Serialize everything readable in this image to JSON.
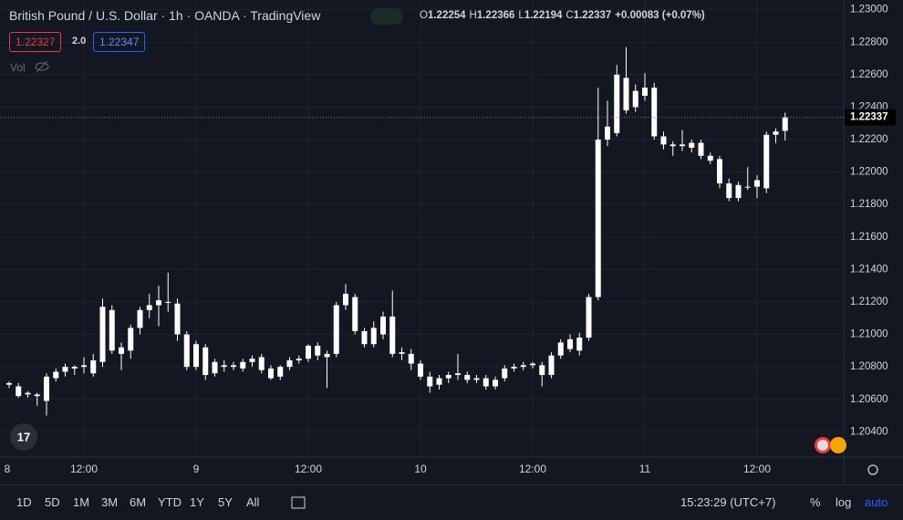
{
  "header": {
    "title": "British Pound / U.S. Dollar · 1h · OANDA · TradingView",
    "ohlc": [
      {
        "key": "O",
        "value": "1.22254"
      },
      {
        "key": "H",
        "value": "1.22366"
      },
      {
        "key": "L",
        "value": "1.22194"
      },
      {
        "key": "C",
        "value": "1.22337"
      }
    ],
    "change": "+0.00083 (+0.07%)",
    "bid": "1.22327",
    "spread": "2.0",
    "ask": "1.22347",
    "volume_label": "Vol"
  },
  "chart_data": {
    "type": "candlestick",
    "up_color": "#ffffff",
    "down_color": "#ffffff",
    "grid": true,
    "ylim": [
      1.2025,
      1.2306
    ],
    "yticks": [
      {
        "value": 1.204,
        "label": "1.20400"
      },
      {
        "value": 1.206,
        "label": "1.20600"
      },
      {
        "value": 1.208,
        "label": "1.20800"
      },
      {
        "value": 1.21,
        "label": "1.21000"
      },
      {
        "value": 1.212,
        "label": "1.21200"
      },
      {
        "value": 1.214,
        "label": "1.21400"
      },
      {
        "value": 1.216,
        "label": "1.21600"
      },
      {
        "value": 1.218,
        "label": "1.21800"
      },
      {
        "value": 1.22,
        "label": "1.22000"
      },
      {
        "value": 1.222,
        "label": "1.22200"
      },
      {
        "value": 1.224,
        "label": "1.22400"
      },
      {
        "value": 1.226,
        "label": "1.22600"
      },
      {
        "value": 1.228,
        "label": "1.22800"
      },
      {
        "value": 1.23,
        "label": "1.23000"
      }
    ],
    "xticks": [
      {
        "value": -4,
        "label": "8"
      },
      {
        "value": 8,
        "label": "12:00"
      },
      {
        "value": 20,
        "label": "9"
      },
      {
        "value": 32,
        "label": "12:00"
      },
      {
        "value": 44,
        "label": "10"
      },
      {
        "value": 56,
        "label": "12:00"
      },
      {
        "value": 68,
        "label": "11"
      },
      {
        "value": 80,
        "label": "12:00"
      }
    ],
    "open": [
      1.2069,
      1.2068,
      1.2063,
      1.2063,
      1.2059,
      1.2073,
      1.2077,
      1.2079,
      1.208,
      1.2076,
      1.2083,
      1.2115,
      1.2088,
      1.209,
      1.2104,
      1.2115,
      1.2118,
      1.212,
      1.2119,
      1.21,
      1.208,
      1.2092,
      1.2076,
      1.2081,
      1.208,
      1.2079,
      1.2083,
      1.2086,
      1.2079,
      1.2074,
      1.208,
      1.2084,
      1.2085,
      1.2093,
      1.2088,
      1.2088,
      1.2118,
      1.2123,
      1.2102,
      1.2094,
      1.21,
      1.2111,
      1.2088,
      1.2088,
      1.2082,
      1.2074,
      1.2069,
      1.2073,
      1.2075,
      1.2075,
      1.2072,
      1.2073,
      1.2068,
      1.2073,
      1.2079,
      1.208,
      1.2081,
      1.2081,
      1.2075,
      1.2087,
      1.2091,
      1.209,
      1.2098,
      1.2123,
      1.222,
      1.2224,
      1.2258,
      1.224,
      1.2247,
      1.2252,
      1.2222,
      1.2217,
      1.2216,
      1.2215,
      1.2218,
      1.221,
      1.2208,
      1.2193,
      1.2184,
      1.2191,
      1.2191,
      1.219,
      1.2223,
      1.22254
    ],
    "high": [
      1.2071,
      1.207,
      1.2065,
      1.2064,
      1.2076,
      1.2079,
      1.2082,
      1.2081,
      1.2086,
      1.2088,
      1.2122,
      1.2118,
      1.2095,
      1.2106,
      1.2117,
      1.2125,
      1.213,
      1.2138,
      1.2122,
      1.2102,
      1.2096,
      1.2094,
      1.2085,
      1.2084,
      1.2083,
      1.2085,
      1.2087,
      1.2088,
      1.2081,
      1.2081,
      1.2086,
      1.2087,
      1.2094,
      1.2095,
      1.209,
      1.212,
      1.2131,
      1.2125,
      1.2104,
      1.2108,
      1.2114,
      1.2127,
      1.2092,
      1.2091,
      1.2084,
      1.2077,
      1.2075,
      1.2077,
      1.2088,
      1.2077,
      1.2075,
      1.2075,
      1.2074,
      1.2081,
      1.2082,
      1.2083,
      1.2083,
      1.2083,
      1.2089,
      1.2097,
      1.21,
      1.2101,
      1.2125,
      1.2252,
      1.2244,
      1.2266,
      1.2277,
      1.2254,
      1.2261,
      1.2255,
      1.2225,
      1.2219,
      1.2226,
      1.222,
      1.222,
      1.2212,
      1.221,
      1.2196,
      1.2194,
      1.2203,
      1.2198,
      1.2225,
      1.2227,
      1.22366
    ],
    "low": [
      1.2067,
      1.2061,
      1.2061,
      1.2056,
      1.205,
      1.2071,
      1.2074,
      1.2075,
      1.2076,
      1.2074,
      1.208,
      1.2088,
      1.2078,
      1.2085,
      1.21,
      1.211,
      1.2105,
      1.2114,
      1.2096,
      1.2078,
      1.2078,
      1.2072,
      1.2074,
      1.2077,
      1.2078,
      1.2077,
      1.208,
      1.2076,
      1.2072,
      1.2072,
      1.2078,
      1.2082,
      1.2083,
      1.2084,
      1.2067,
      1.2086,
      1.2115,
      1.21,
      1.2092,
      1.2092,
      1.2097,
      1.2086,
      1.2084,
      1.2078,
      1.2072,
      1.2064,
      1.2066,
      1.207,
      1.2072,
      1.207,
      1.207,
      1.2066,
      1.2066,
      1.2071,
      1.2077,
      1.2078,
      1.2079,
      1.2068,
      1.2073,
      1.2085,
      1.2089,
      1.2087,
      1.2096,
      1.2121,
      1.2216,
      1.2222,
      1.2236,
      1.2237,
      1.2244,
      1.222,
      1.2214,
      1.221,
      1.2213,
      1.2212,
      1.2208,
      1.2205,
      1.219,
      1.2182,
      1.2182,
      1.2189,
      1.2184,
      1.2187,
      1.2218,
      1.22194
    ],
    "close": [
      1.207,
      1.2062,
      1.2064,
      1.2062,
      1.2074,
      1.2077,
      1.208,
      1.208,
      1.2081,
      1.2084,
      1.2117,
      1.209,
      1.2092,
      1.2104,
      1.2115,
      1.2118,
      1.2121,
      1.212,
      1.21,
      1.208,
      1.2094,
      1.2075,
      1.2083,
      1.208,
      1.2081,
      1.2083,
      1.2085,
      1.2078,
      1.2073,
      1.208,
      1.2084,
      1.2085,
      1.2093,
      1.2087,
      1.2086,
      1.2118,
      1.2125,
      1.2102,
      1.2094,
      1.2104,
      1.2111,
      1.2088,
      1.2089,
      1.2082,
      1.2074,
      1.2068,
      1.2073,
      1.2075,
      1.2076,
      1.2072,
      1.2073,
      1.2068,
      1.2072,
      1.2079,
      1.208,
      1.2081,
      1.2082,
      1.2075,
      1.2087,
      1.2095,
      1.2097,
      1.2098,
      1.2123,
      1.222,
      1.2228,
      1.226,
      1.2238,
      1.225,
      1.2252,
      1.2222,
      1.2217,
      1.2216,
      1.2217,
      1.2218,
      1.221,
      1.2207,
      1.2193,
      1.2184,
      1.2192,
      1.2191,
      1.2195,
      1.2223,
      1.2225,
      1.22337
    ]
  },
  "toolbar": {
    "ranges": [
      "1D",
      "5D",
      "1M",
      "3M",
      "6M",
      "YTD",
      "1Y",
      "5Y",
      "All"
    ],
    "time": "15:23:29 (UTC+7)",
    "options": [
      "%",
      "log",
      "auto"
    ]
  }
}
